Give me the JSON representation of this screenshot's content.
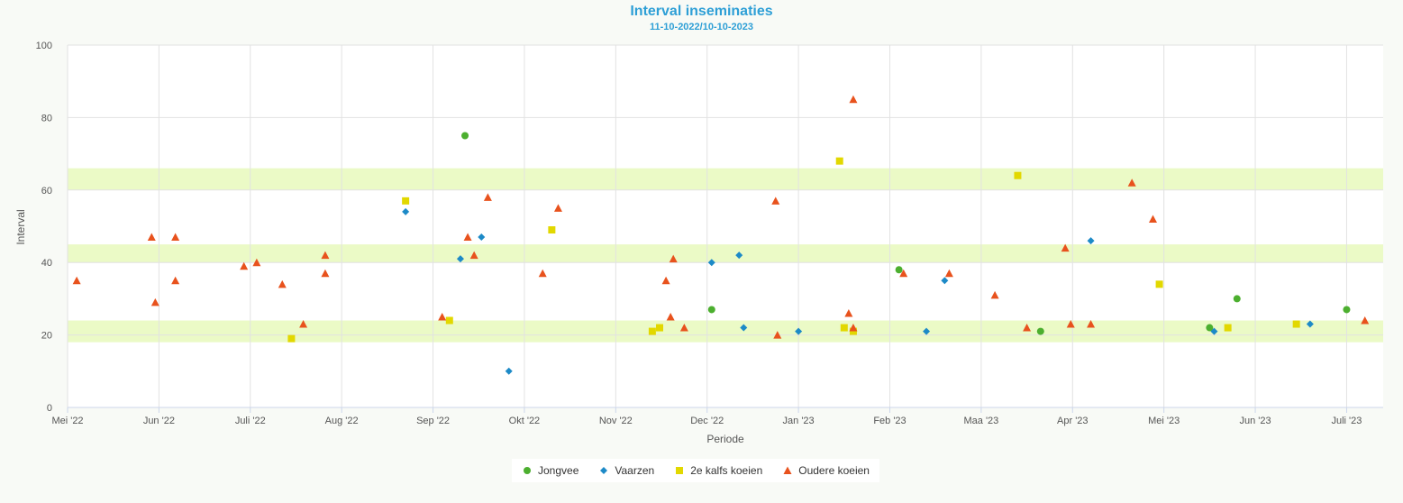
{
  "chart_data": {
    "type": "scatter",
    "title": "Interval inseminaties",
    "subtitle": "11-10-2022/10-10-2023",
    "xlabel": "Periode",
    "ylabel": "Interval",
    "ylim": [
      0,
      100
    ],
    "yticks": [
      0,
      20,
      40,
      60,
      80,
      100
    ],
    "xlim": [
      0,
      14.4
    ],
    "xticks": [
      {
        "label": "Mei '22",
        "x": 0
      },
      {
        "label": "Jun '22",
        "x": 1
      },
      {
        "label": "Juli '22",
        "x": 2
      },
      {
        "label": "Aug '22",
        "x": 3
      },
      {
        "label": "Sep '22",
        "x": 4
      },
      {
        "label": "Okt '22",
        "x": 5
      },
      {
        "label": "Nov '22",
        "x": 6
      },
      {
        "label": "Dec '22",
        "x": 7
      },
      {
        "label": "Jan '23",
        "x": 8
      },
      {
        "label": "Feb '23",
        "x": 9
      },
      {
        "label": "Maa '23",
        "x": 10
      },
      {
        "label": "Apr '23",
        "x": 11
      },
      {
        "label": "Mei '23",
        "x": 12
      },
      {
        "label": "Jun '23",
        "x": 13
      },
      {
        "label": "Juli '23",
        "x": 14
      }
    ],
    "grid": true,
    "bands": [
      [
        18,
        24
      ],
      [
        40,
        45
      ],
      [
        60,
        66
      ]
    ],
    "band_color": "#ebfac6",
    "legend_position": "bottom-center",
    "series": [
      {
        "name": "Jongvee",
        "marker": "circle",
        "color": "#4caf2f",
        "points": [
          [
            4.35,
            75
          ],
          [
            7.05,
            27
          ],
          [
            9.1,
            38
          ],
          [
            10.65,
            21
          ],
          [
            12.5,
            22
          ],
          [
            12.8,
            30
          ],
          [
            14.0,
            27
          ]
        ]
      },
      {
        "name": "Vaarzen",
        "marker": "diamond",
        "color": "#1d8ac7",
        "points": [
          [
            3.7,
            54
          ],
          [
            4.3,
            41
          ],
          [
            4.53,
            47
          ],
          [
            4.83,
            10
          ],
          [
            7.05,
            40
          ],
          [
            7.35,
            42
          ],
          [
            7.4,
            22
          ],
          [
            8.0,
            21
          ],
          [
            9.4,
            21
          ],
          [
            9.6,
            35
          ],
          [
            11.2,
            46
          ],
          [
            12.55,
            21
          ],
          [
            13.6,
            23
          ]
        ]
      },
      {
        "name": "2e kalfs koeien",
        "marker": "square",
        "color": "#e2d800",
        "points": [
          [
            2.45,
            19
          ],
          [
            3.7,
            57
          ],
          [
            4.18,
            24
          ],
          [
            5.3,
            49
          ],
          [
            6.4,
            21
          ],
          [
            6.48,
            22
          ],
          [
            8.45,
            68
          ],
          [
            8.5,
            22
          ],
          [
            8.6,
            21
          ],
          [
            10.4,
            64
          ],
          [
            11.95,
            34
          ],
          [
            12.7,
            22
          ],
          [
            13.45,
            23
          ]
        ]
      },
      {
        "name": "Oudere koeien",
        "marker": "triangle",
        "color": "#e8521d",
        "points": [
          [
            0.1,
            35
          ],
          [
            0.92,
            47
          ],
          [
            0.96,
            29
          ],
          [
            1.18,
            47
          ],
          [
            1.18,
            35
          ],
          [
            1.93,
            39
          ],
          [
            2.07,
            40
          ],
          [
            2.35,
            34
          ],
          [
            2.58,
            23
          ],
          [
            2.82,
            42
          ],
          [
            2.82,
            37
          ],
          [
            4.1,
            25
          ],
          [
            4.38,
            47
          ],
          [
            4.45,
            42
          ],
          [
            4.6,
            58
          ],
          [
            5.2,
            37
          ],
          [
            5.37,
            55
          ],
          [
            6.55,
            35
          ],
          [
            6.6,
            25
          ],
          [
            6.63,
            41
          ],
          [
            6.75,
            22
          ],
          [
            7.75,
            57
          ],
          [
            7.77,
            20
          ],
          [
            8.55,
            26
          ],
          [
            8.6,
            85
          ],
          [
            8.6,
            22
          ],
          [
            9.15,
            37
          ],
          [
            9.65,
            37
          ],
          [
            10.15,
            31
          ],
          [
            10.5,
            22
          ],
          [
            10.92,
            44
          ],
          [
            10.98,
            23
          ],
          [
            11.2,
            23
          ],
          [
            11.65,
            62
          ],
          [
            11.88,
            52
          ],
          [
            14.2,
            24
          ]
        ]
      }
    ]
  }
}
